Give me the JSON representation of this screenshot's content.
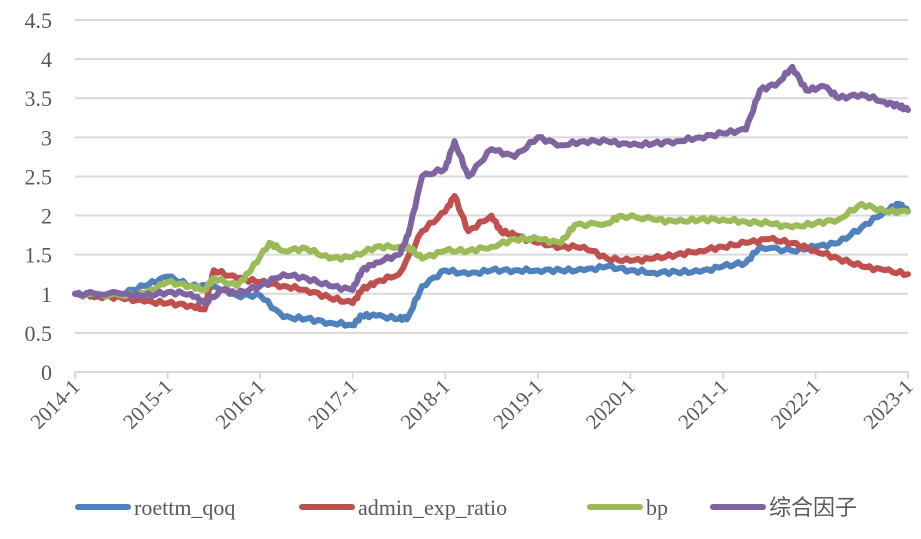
{
  "chart_data": {
    "type": "line",
    "title": "",
    "xlabel": "",
    "ylabel": "",
    "ylim": [
      0,
      4.5
    ],
    "yticks": [
      "0",
      "0.5",
      "1",
      "1.5",
      "2",
      "2.5",
      "3",
      "3.5",
      "4",
      "4.5"
    ],
    "ytick_values": [
      0,
      0.5,
      1,
      1.5,
      2,
      2.5,
      3,
      3.5,
      4,
      4.5
    ],
    "xlim": [
      2014,
      2023
    ],
    "xticks": [
      "2014-1",
      "2015-1",
      "2016-1",
      "2017-1",
      "2018-1",
      "2019-1",
      "2020-1",
      "2021-1",
      "2022-1",
      "2023-1"
    ],
    "xtick_values": [
      2014,
      2015,
      2016,
      2017,
      2018,
      2019,
      2020,
      2021,
      2022,
      2023
    ],
    "grid": true,
    "legend_position": "bottom",
    "series": [
      {
        "name": "roettm_qoq",
        "color": "#4f81bd",
        "x": [
          2014,
          2014.25,
          2014.5,
          2014.75,
          2015,
          2015.25,
          2015.5,
          2015.75,
          2016,
          2016.25,
          2016.5,
          2016.75,
          2017,
          2017.1,
          2017.25,
          2017.5,
          2017.6,
          2017.75,
          2018,
          2018.25,
          2018.5,
          2018.75,
          2019,
          2019.25,
          2019.5,
          2019.75,
          2020,
          2020.25,
          2020.5,
          2020.75,
          2021,
          2021.25,
          2021.4,
          2021.75,
          2022,
          2022.25,
          2022.5,
          2022.75,
          2022.9,
          2023
        ],
        "y": [
          1.0,
          0.97,
          1.0,
          1.1,
          1.22,
          1.1,
          1.1,
          0.98,
          0.98,
          0.7,
          0.68,
          0.63,
          0.6,
          0.72,
          0.72,
          0.68,
          0.7,
          1.1,
          1.3,
          1.25,
          1.3,
          1.3,
          1.3,
          1.3,
          1.3,
          1.35,
          1.3,
          1.27,
          1.28,
          1.28,
          1.35,
          1.4,
          1.6,
          1.55,
          1.6,
          1.65,
          1.85,
          2.05,
          2.15,
          2.05
        ]
      },
      {
        "name": "admin_exp_ratio",
        "color": "#c0504d",
        "x": [
          2014,
          2014.25,
          2014.5,
          2014.75,
          2015,
          2015.25,
          2015.4,
          2015.5,
          2015.75,
          2016,
          2016.25,
          2016.5,
          2016.75,
          2017,
          2017.1,
          2017.25,
          2017.5,
          2017.75,
          2018,
          2018.1,
          2018.25,
          2018.5,
          2018.6,
          2018.75,
          2019,
          2019.25,
          2019.5,
          2019.75,
          2020,
          2020.25,
          2020.5,
          2020.75,
          2021,
          2021.25,
          2021.5,
          2021.75,
          2022,
          2022.25,
          2022.5,
          2022.75,
          2023
        ],
        "y": [
          1.0,
          0.97,
          0.95,
          0.9,
          0.88,
          0.85,
          0.8,
          1.3,
          1.2,
          1.15,
          1.1,
          1.05,
          0.95,
          0.88,
          1.05,
          1.15,
          1.25,
          1.8,
          2.05,
          2.25,
          1.8,
          2.0,
          1.8,
          1.75,
          1.65,
          1.6,
          1.6,
          1.45,
          1.42,
          1.45,
          1.5,
          1.55,
          1.6,
          1.65,
          1.7,
          1.65,
          1.55,
          1.45,
          1.35,
          1.3,
          1.25
        ]
      },
      {
        "name": "bp",
        "color": "#9bbb59",
        "x": [
          2014,
          2014.5,
          2014.75,
          2015,
          2015.25,
          2015.4,
          2015.5,
          2015.75,
          2015.9,
          2016.1,
          2016.25,
          2016.5,
          2016.75,
          2017,
          2017.25,
          2017.5,
          2017.6,
          2017.75,
          2018,
          2018.25,
          2018.5,
          2018.75,
          2019,
          2019.25,
          2019.4,
          2019.75,
          2019.9,
          2020.25,
          2020.5,
          2020.75,
          2021,
          2021.25,
          2021.5,
          2021.75,
          2022,
          2022.25,
          2022.5,
          2022.75,
          2023
        ],
        "y": [
          1.0,
          0.98,
          1.0,
          1.15,
          1.1,
          1.05,
          1.2,
          1.1,
          1.3,
          1.65,
          1.55,
          1.58,
          1.45,
          1.47,
          1.6,
          1.6,
          1.6,
          1.45,
          1.55,
          1.55,
          1.6,
          1.7,
          1.7,
          1.65,
          1.88,
          1.9,
          2.0,
          1.95,
          1.92,
          1.95,
          1.95,
          1.92,
          1.9,
          1.85,
          1.9,
          1.95,
          2.15,
          2.05,
          2.05
        ]
      },
      {
        "name": "综合因子",
        "color": "#8064a2",
        "x": [
          2014,
          2014.5,
          2014.75,
          2015,
          2015.25,
          2015.4,
          2015.6,
          2015.75,
          2016,
          2016.25,
          2016.5,
          2016.75,
          2017,
          2017.1,
          2017.25,
          2017.5,
          2017.6,
          2017.75,
          2018,
          2018.1,
          2018.25,
          2018.5,
          2018.75,
          2019,
          2019.25,
          2019.5,
          2019.75,
          2020,
          2020.25,
          2020.5,
          2020.75,
          2021,
          2021.25,
          2021.4,
          2021.6,
          2021.75,
          2021.9,
          2022.1,
          2022.25,
          2022.5,
          2022.75,
          2022.9,
          2023
        ],
        "y": [
          1.0,
          1.0,
          0.97,
          1.02,
          1.0,
          0.88,
          1.05,
          1.0,
          1.1,
          1.25,
          1.2,
          1.1,
          1.05,
          1.3,
          1.4,
          1.5,
          1.75,
          2.5,
          2.6,
          2.95,
          2.5,
          2.85,
          2.75,
          3.0,
          2.9,
          2.95,
          2.95,
          2.9,
          2.92,
          2.95,
          3.0,
          3.05,
          3.1,
          3.6,
          3.7,
          3.9,
          3.6,
          3.65,
          3.5,
          3.55,
          3.45,
          3.4,
          3.35
        ]
      }
    ]
  }
}
